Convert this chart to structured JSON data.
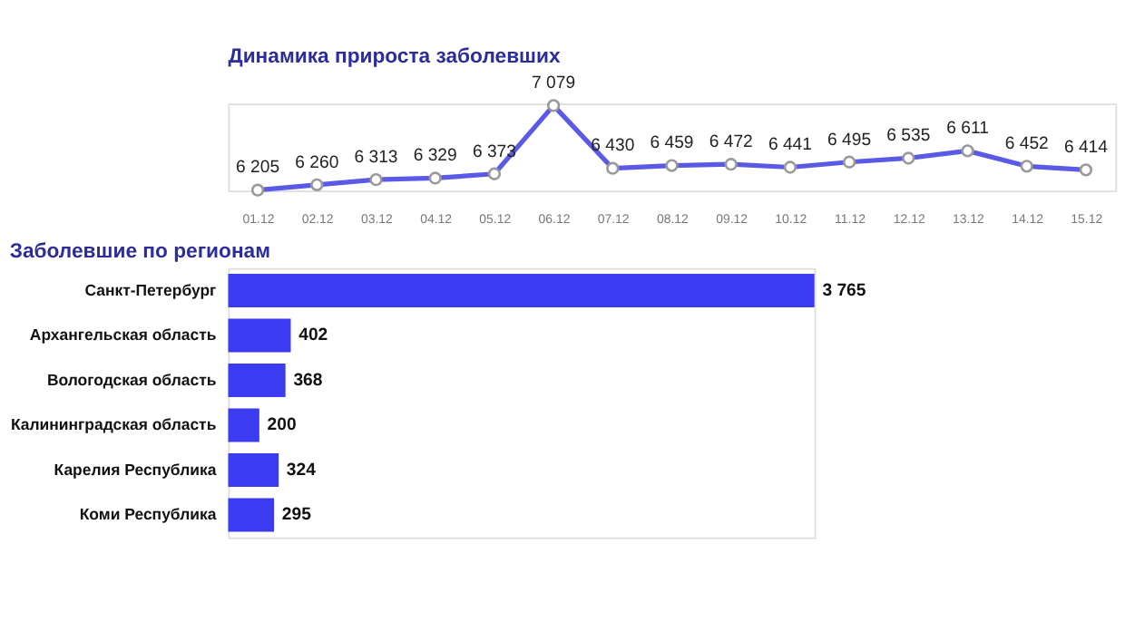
{
  "chart_data": [
    {
      "type": "line",
      "title": "Динамика прироста заболевших",
      "categories": [
        "01.12",
        "02.12",
        "03.12",
        "04.12",
        "05.12",
        "06.12",
        "07.12",
        "08.12",
        "09.12",
        "10.12",
        "11.12",
        "12.12",
        "13.12",
        "14.12",
        "15.12"
      ],
      "series": [
        {
          "color": "#5a5ae6",
          "values": [
            6205,
            6260,
            6313,
            6329,
            6373,
            7079,
            6430,
            6459,
            6472,
            6441,
            6495,
            6535,
            6611,
            6452,
            6414
          ]
        }
      ],
      "data_labels": true,
      "marker": "circle",
      "tick_labels": "x"
    },
    {
      "type": "bar",
      "orientation": "horizontal",
      "title": "Заболевшие по регионам",
      "categories": [
        "Санкт-Петербург",
        "Архангельская область",
        "Вологодская область",
        "Калининградская область",
        "Карелия Республика",
        "Коми Республика"
      ],
      "series": [
        {
          "color": "#3b3bf2",
          "values": [
            3765,
            402,
            368,
            200,
            324,
            295
          ]
        }
      ],
      "data_labels": true,
      "tick_labels": "y"
    }
  ]
}
